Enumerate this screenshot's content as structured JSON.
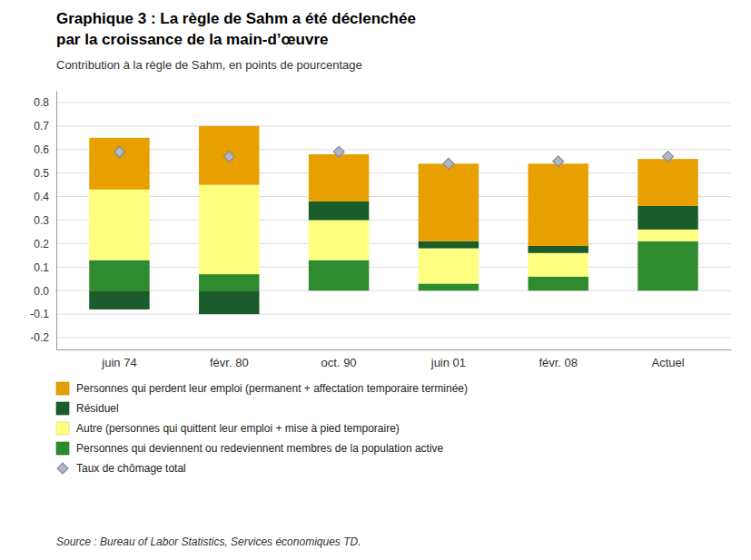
{
  "chart_data": {
    "type": "bar",
    "stacked": true,
    "grid": true,
    "title": [
      "Graphique 3 : La règle de Sahm a été déclenchée",
      "par la croissance de la main-d’œuvre"
    ],
    "subtitle": "Contribution à la règle de Sahm, en points de pourcentage",
    "source": "Source : Bureau of Labor Statistics, Services économiques TD.",
    "categories": [
      "juin 74",
      "févr. 80",
      "oct. 90",
      "juin 01",
      "févr. 08",
      "Actuel"
    ],
    "series": [
      {
        "type": "bar",
        "color": "#1A5C2A",
        "values": [
          -0.08,
          -0.1,
          0.0,
          0.0,
          0.0,
          0.0
        ]
      },
      {
        "type": "bar",
        "name": "Personnes qui deviennent ou redeviennent membres de la population active",
        "color": "#2E8B2E",
        "values": [
          0.13,
          0.07,
          0.13,
          0.03,
          0.06,
          0.21
        ]
      },
      {
        "type": "bar",
        "name": "Autre (personnes qui quittent leur emploi + mise à pied temporaire)",
        "color": "#FFFF80",
        "values": [
          0.3,
          0.38,
          0.17,
          0.15,
          0.1,
          0.05
        ]
      },
      {
        "type": "bar",
        "name": "Résiduel",
        "color": "#1A5C2A",
        "values": [
          0.0,
          0.0,
          0.08,
          0.03,
          0.03,
          0.1
        ]
      },
      {
        "type": "bar",
        "name": "Personnes qui perdent leur emploi (permanent + affectation temporaire terminée)",
        "color": "#E8A000",
        "values": [
          0.22,
          0.25,
          0.2,
          0.33,
          0.35,
          0.2
        ]
      },
      {
        "type": "scatter",
        "name": "Taux de chômage total",
        "color": "#B0B8C8",
        "marker": "diamond",
        "values": [
          0.59,
          0.57,
          0.59,
          0.54,
          0.55,
          0.57
        ]
      }
    ],
    "ylim": [
      -0.25,
      0.85
    ],
    "yticks": [
      -0.2,
      -0.1,
      {
        "value": 0.0,
        "label": "0.0"
      },
      0.1,
      0.2,
      0.3,
      0.4,
      0.5,
      0.6,
      0.7,
      0.8
    ]
  }
}
